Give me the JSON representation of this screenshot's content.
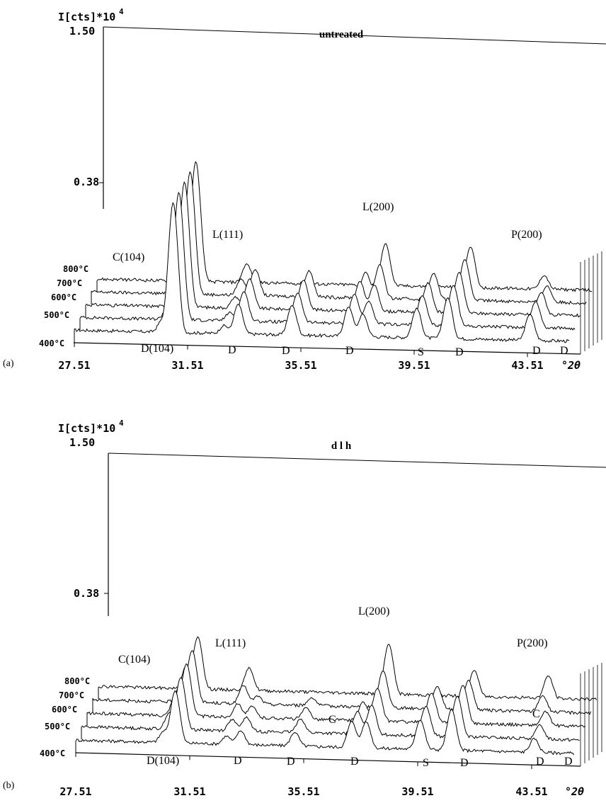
{
  "chart_data": [
    {
      "panel_label": "(a)",
      "type": "line",
      "title": "untreated",
      "ylabel": "I[cts]*10",
      "ylabel_exp": "4",
      "y_ticks": [
        "1.50",
        "0.38"
      ],
      "ylim": [
        0,
        1.5
      ],
      "y_scale": "sqrt",
      "xlim": [
        27.51,
        45.0
      ],
      "x_ticks": [
        "27.51",
        "31.51",
        "35.51",
        "39.51",
        "43.51"
      ],
      "x_unit": "°2θ",
      "temperature_labels": [
        "800°C",
        "700°C",
        "600°C",
        "500°C",
        "400°C"
      ],
      "series": [
        {
          "name": "400°C",
          "peaks": [
            [
              30.6,
              0.03
            ],
            [
              31.0,
              1.5
            ],
            [
              32.8,
              0.02
            ],
            [
              33.3,
              0.12
            ],
            [
              35.2,
              0.12
            ],
            [
              37.2,
              0.12
            ],
            [
              37.7,
              0.08
            ],
            [
              39.6,
              0.12
            ],
            [
              40.7,
              0.2
            ],
            [
              43.6,
              0.1
            ]
          ]
        },
        {
          "name": "500°C",
          "peaks": [
            [
              30.6,
              0.03
            ],
            [
              31.0,
              1.45
            ],
            [
              32.8,
              0.02
            ],
            [
              33.3,
              0.12
            ],
            [
              35.2,
              0.12
            ],
            [
              37.2,
              0.12
            ],
            [
              37.7,
              0.08
            ],
            [
              39.6,
              0.12
            ],
            [
              40.7,
              0.2
            ],
            [
              43.6,
              0.1
            ]
          ]
        },
        {
          "name": "600°C",
          "peaks": [
            [
              30.6,
              0.03
            ],
            [
              31.0,
              1.4
            ],
            [
              32.8,
              0.03
            ],
            [
              33.3,
              0.12
            ],
            [
              35.2,
              0.12
            ],
            [
              37.2,
              0.12
            ],
            [
              37.7,
              0.1
            ],
            [
              39.6,
              0.12
            ],
            [
              40.7,
              0.2
            ],
            [
              43.6,
              0.08
            ]
          ]
        },
        {
          "name": "700°C",
          "peaks": [
            [
              30.6,
              0.03
            ],
            [
              31.0,
              1.35
            ],
            [
              32.8,
              0.05
            ],
            [
              33.3,
              0.1
            ],
            [
              35.2,
              0.1
            ],
            [
              37.2,
              0.1
            ],
            [
              37.7,
              0.15
            ],
            [
              39.6,
              0.1
            ],
            [
              40.7,
              0.2
            ],
            [
              43.6,
              0.05
            ]
          ]
        },
        {
          "name": "800°C",
          "peaks": [
            [
              30.6,
              0.04
            ],
            [
              31.0,
              1.3
            ],
            [
              32.8,
              0.06
            ],
            [
              37.7,
              0.21
            ],
            [
              40.7,
              0.2
            ],
            [
              43.3,
              0.04
            ]
          ]
        }
      ],
      "annotations": [
        "C(104)",
        "L(111)",
        "L(200)",
        "P(200)",
        "D(104)",
        "D",
        "D",
        "D",
        "S",
        "D",
        "D",
        "D"
      ]
    },
    {
      "panel_label": "(b)",
      "type": "line",
      "title": "d l h",
      "ylabel": "I[cts]*10",
      "ylabel_exp": "4",
      "y_ticks": [
        "1.50",
        "0.38"
      ],
      "ylim": [
        0,
        1.5
      ],
      "y_scale": "sqrt",
      "xlim": [
        27.51,
        45.0
      ],
      "x_ticks": [
        "27.51",
        "31.51",
        "35.51",
        "39.51",
        "43.51"
      ],
      "x_unit": "°2θ",
      "temperature_labels": [
        "800°C",
        "700°C",
        "600°C",
        "500°C",
        "400°C"
      ],
      "series": [
        {
          "name": "400°C",
          "peaks": [
            [
              30.6,
              0.03
            ],
            [
              31.0,
              0.3
            ],
            [
              32.8,
              0.02
            ],
            [
              33.3,
              0.04
            ],
            [
              35.2,
              0.04
            ],
            [
              37.2,
              0.1
            ],
            [
              37.7,
              0.1
            ],
            [
              39.6,
              0.12
            ],
            [
              40.7,
              0.2
            ],
            [
              43.6,
              0.04
            ]
          ]
        },
        {
          "name": "500°C",
          "peaks": [
            [
              30.6,
              0.05
            ],
            [
              31.0,
              0.3
            ],
            [
              32.8,
              0.03
            ],
            [
              33.3,
              0.04
            ],
            [
              35.2,
              0.04
            ],
            [
              37.2,
              0.08
            ],
            [
              37.7,
              0.12
            ],
            [
              39.6,
              0.12
            ],
            [
              40.7,
              0.2
            ],
            [
              43.6,
              0.04
            ]
          ]
        },
        {
          "name": "600°C",
          "peaks": [
            [
              30.6,
              0.06
            ],
            [
              31.0,
              0.3
            ],
            [
              32.8,
              0.04
            ],
            [
              33.3,
              0.03
            ],
            [
              35.2,
              0.03
            ],
            [
              37.2,
              0.06
            ],
            [
              37.7,
              0.14
            ],
            [
              39.6,
              0.12
            ],
            [
              40.7,
              0.18
            ],
            [
              43.6,
              0.04
            ]
          ]
        },
        {
          "name": "700°C",
          "peaks": [
            [
              30.6,
              0.06
            ],
            [
              31.0,
              0.3
            ],
            [
              32.8,
              0.06
            ],
            [
              33.3,
              0.02
            ],
            [
              35.2,
              0.02
            ],
            [
              37.7,
              0.17
            ],
            [
              39.6,
              0.08
            ],
            [
              40.7,
              0.12
            ],
            [
              43.3,
              0.05
            ]
          ]
        },
        {
          "name": "800°C",
          "peaks": [
            [
              30.6,
              0.08
            ],
            [
              31.0,
              0.3
            ],
            [
              32.8,
              0.08
            ],
            [
              37.7,
              0.28
            ],
            [
              40.7,
              0.1
            ],
            [
              43.3,
              0.08
            ]
          ]
        }
      ],
      "annotations": [
        "C(104)",
        "L(111)",
        "L(200)",
        "P(200)",
        "C",
        "C",
        "D(104)",
        "D",
        "D",
        "D",
        "S",
        "D",
        "D",
        "D"
      ]
    }
  ]
}
